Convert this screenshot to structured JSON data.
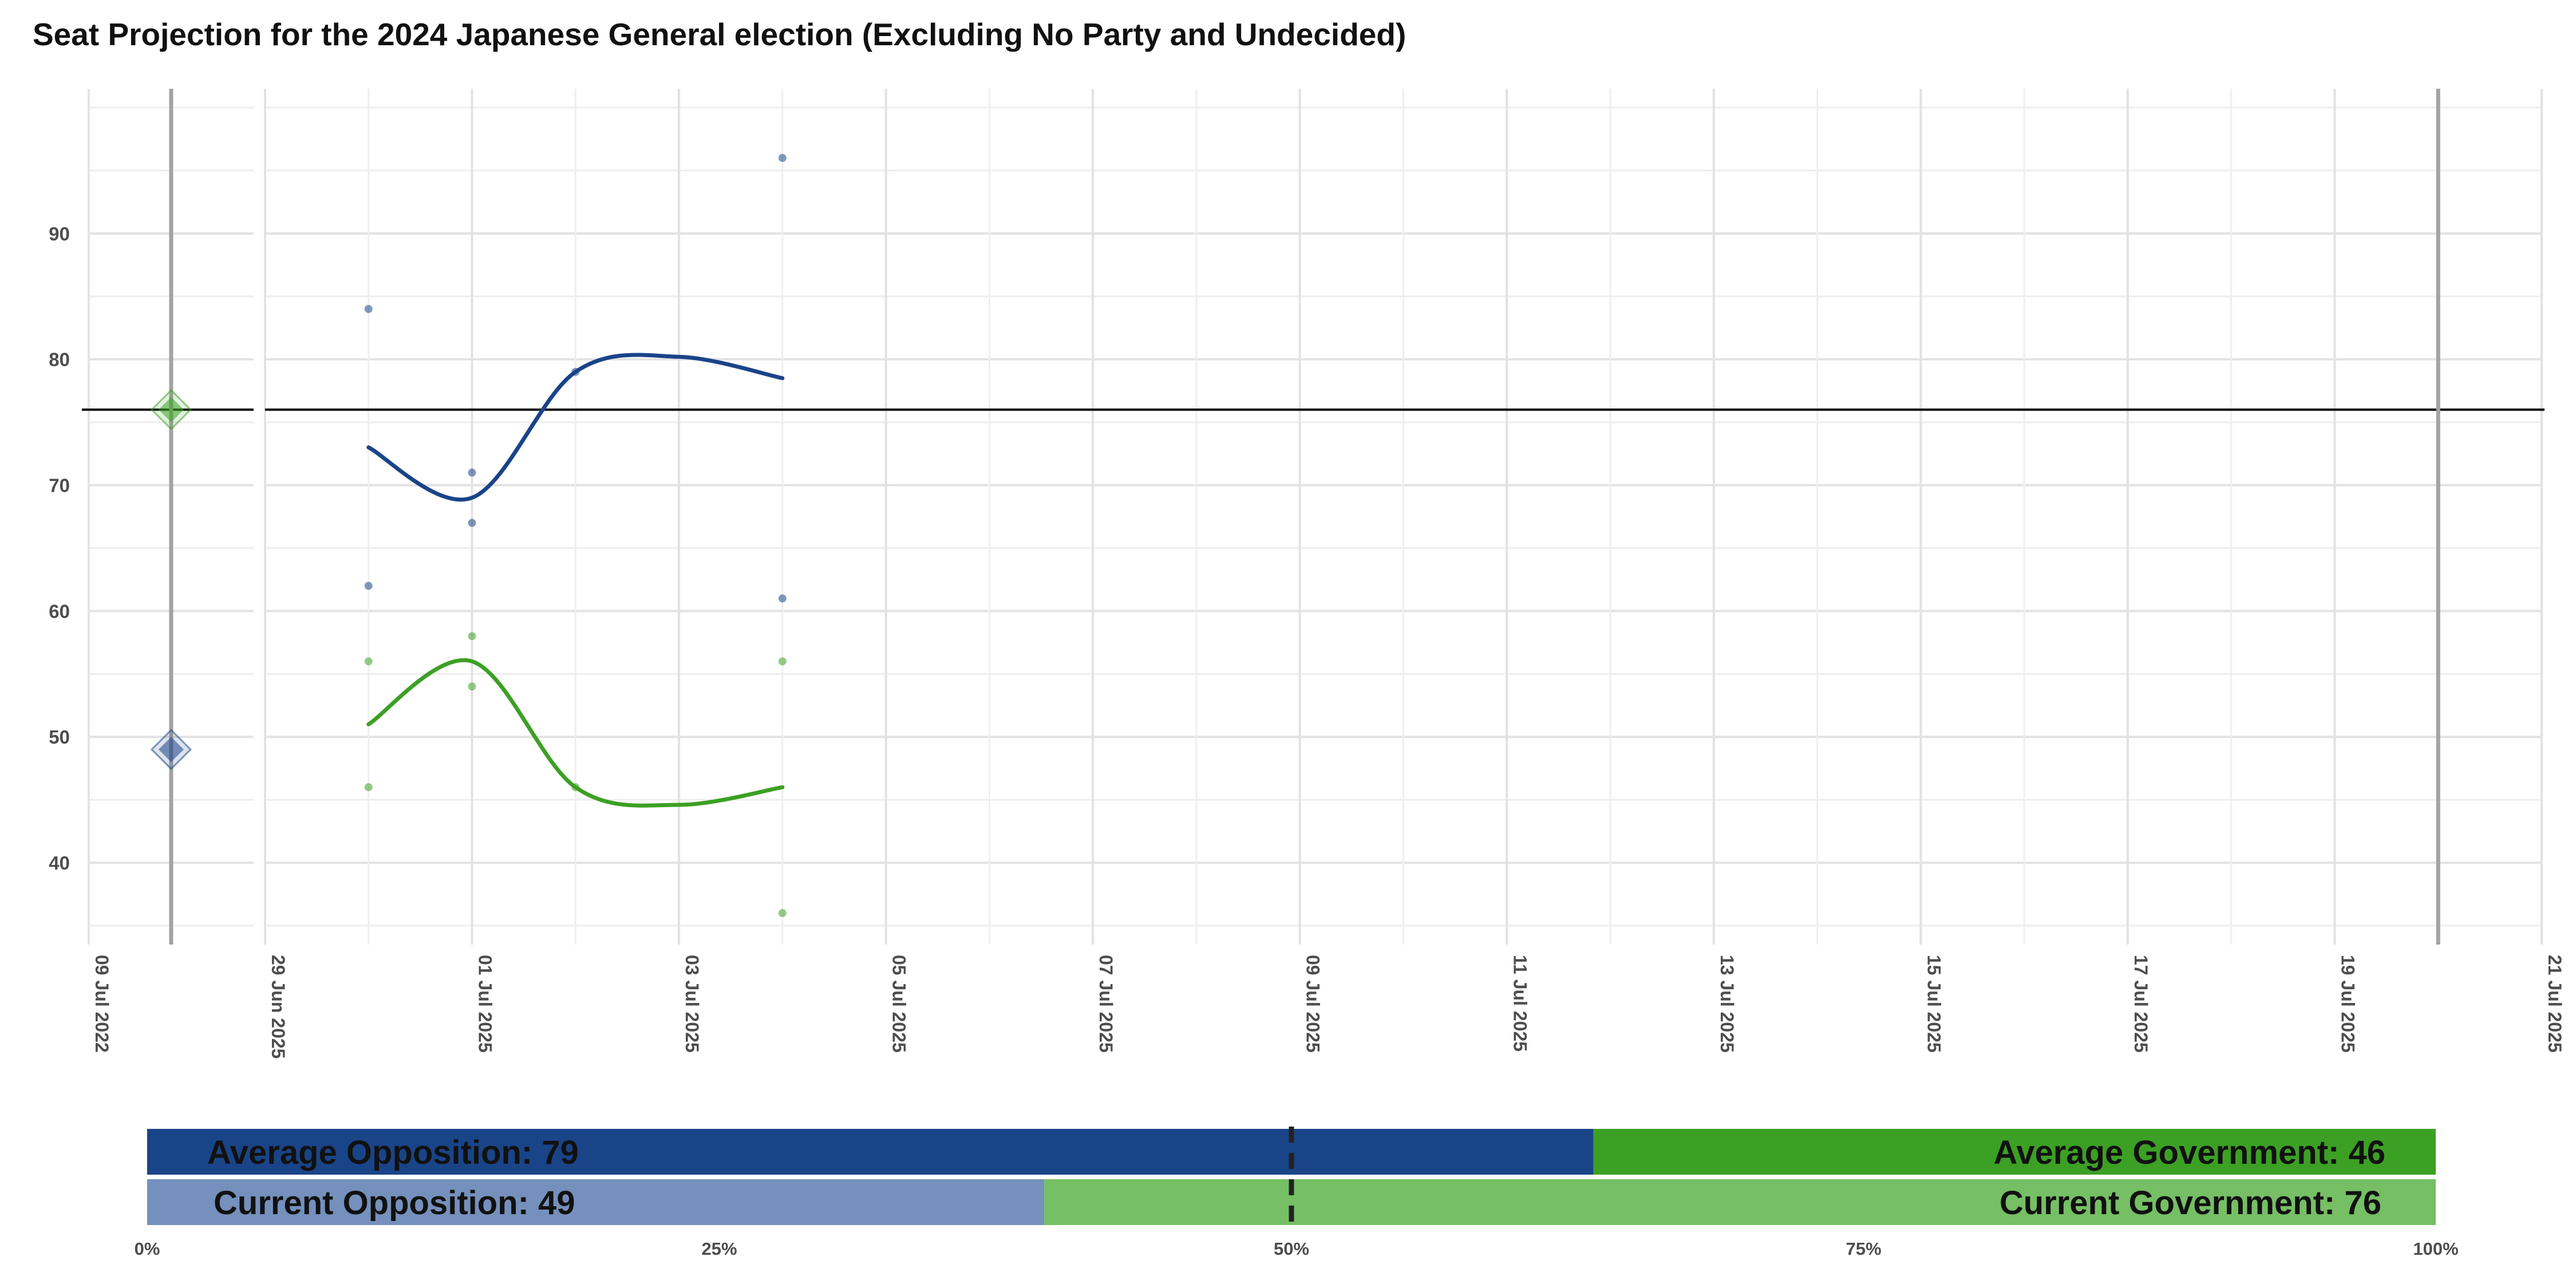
{
  "chart_data": [
    {
      "type": "line",
      "title": "Seat Projection for the 2024 Japanese General election (Excluding No Party and Undecided)",
      "xlabel": "",
      "ylabel": "",
      "ylim": [
        33.5,
        101.5
      ],
      "y_ticks": [
        40,
        50,
        60,
        70,
        80,
        90
      ],
      "threshold_line": 76,
      "grid": true,
      "last_election_panel": {
        "x_ticks": [
          "09 Jul 2022",
          "29 Jun 2025"
        ],
        "vertical_line_date": "2022-07-10",
        "points": [
          {
            "group": "Government",
            "date": "2022-07-10",
            "value": 76
          },
          {
            "group": "Opposition",
            "date": "2022-07-10",
            "value": 49
          }
        ]
      },
      "x_ticks": [
        "29 Jun 2025",
        "01 Jul 2025",
        "03 Jul 2025",
        "05 Jul 2025",
        "07 Jul 2025",
        "09 Jul 2025",
        "11 Jul 2025",
        "13 Jul 2025",
        "15 Jul 2025",
        "17 Jul 2025",
        "19 Jul 2025",
        "21 Jul 2025"
      ],
      "election_day_line": "2025-07-20",
      "series": [
        {
          "key": "opposition",
          "color": "#1a4488",
          "points": [
            {
              "date": "2025-06-30",
              "value": 84
            },
            {
              "date": "2025-06-30",
              "value": 62
            },
            {
              "date": "2025-07-01",
              "value": 71
            },
            {
              "date": "2025-07-01",
              "value": 67
            },
            {
              "date": "2025-07-02",
              "value": 79
            },
            {
              "date": "2025-07-04",
              "value": 96
            },
            {
              "date": "2025-07-04",
              "value": 61
            }
          ],
          "trend": [
            {
              "date": "2025-06-30",
              "value": 73
            },
            {
              "date": "2025-07-01",
              "value": 69
            },
            {
              "date": "2025-07-02",
              "value": 79
            },
            {
              "date": "2025-07-03",
              "value": 80.2
            },
            {
              "date": "2025-07-04",
              "value": 78.5
            }
          ]
        },
        {
          "key": "government",
          "color": "#3ca024",
          "points": [
            {
              "date": "2025-06-30",
              "value": 56
            },
            {
              "date": "2025-06-30",
              "value": 46
            },
            {
              "date": "2025-07-01",
              "value": 58
            },
            {
              "date": "2025-07-01",
              "value": 54
            },
            {
              "date": "2025-07-02",
              "value": 46
            },
            {
              "date": "2025-07-04",
              "value": 56
            },
            {
              "date": "2025-07-04",
              "value": 36
            }
          ],
          "trend": [
            {
              "date": "2025-06-30",
              "value": 51
            },
            {
              "date": "2025-07-01",
              "value": 56
            },
            {
              "date": "2025-07-02",
              "value": 46
            },
            {
              "date": "2025-07-03",
              "value": 44.6
            },
            {
              "date": "2025-07-04",
              "value": 46
            }
          ]
        }
      ]
    },
    {
      "type": "bar",
      "orientation": "horizontal-stacked",
      "x_ticks": [
        "0%",
        "25%",
        "50%",
        "75%",
        "100%"
      ],
      "xlim": [
        0,
        125
      ],
      "reference_line": 62.5,
      "rows": [
        {
          "name": "Average",
          "segments": [
            {
              "label": "Average Opposition: 79",
              "value": 79,
              "color": "#1a4488"
            },
            {
              "label": "Average Government: 46",
              "value": 46,
              "color": "#3ca024"
            }
          ]
        },
        {
          "name": "Current",
          "segments": [
            {
              "label": "Current Opposition: 49",
              "value": 49,
              "color": "#7590bc"
            },
            {
              "label": "Current Government: 76",
              "value": 76,
              "color": "#76bf65"
            }
          ]
        }
      ]
    }
  ]
}
